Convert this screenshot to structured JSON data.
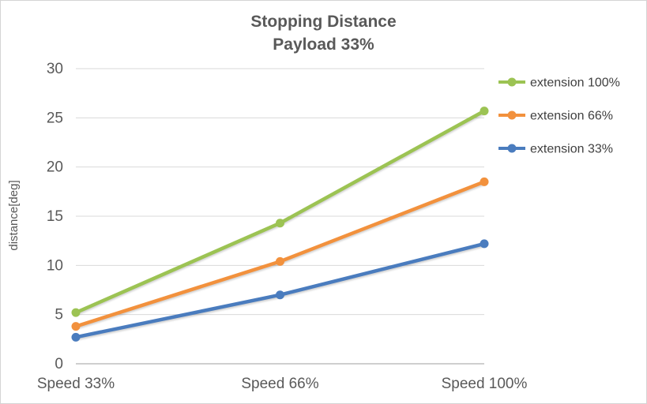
{
  "chart_data": {
    "type": "line",
    "title": "Stopping Distance",
    "subtitle": "Payload 33%",
    "ylabel": "distance[deg]",
    "ylim": [
      0,
      30
    ],
    "yticks": [
      0,
      5,
      10,
      15,
      20,
      25,
      30
    ],
    "categories": [
      "Speed 33%",
      "Speed 66%",
      "Speed 100%"
    ],
    "series": [
      {
        "name": "extension 100%",
        "color": "#9CC353",
        "values": [
          5.2,
          14.3,
          25.7
        ]
      },
      {
        "name": "extension 66%",
        "color": "#F2913D",
        "values": [
          3.8,
          10.4,
          18.5
        ]
      },
      {
        "name": "extension 33%",
        "color": "#4A7CBE",
        "values": [
          2.7,
          7.0,
          12.2
        ]
      }
    ],
    "legend_position": "right",
    "grid": true,
    "colors": {
      "title": "#595959",
      "axis_text": "#595959",
      "legend_text": "#404040",
      "gridline": "#D9D9D9",
      "axis_line": "#BFBFBF",
      "background": "#FFFFFF",
      "border": "#D4D4D4"
    }
  }
}
